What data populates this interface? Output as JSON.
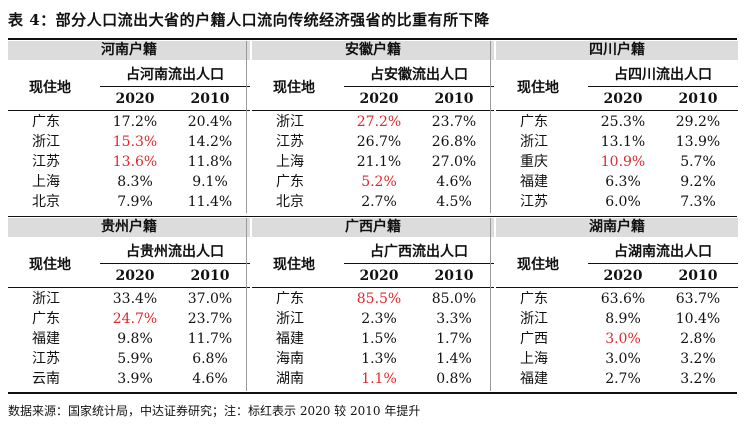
{
  "title": "表 4：部分人口流出大省的户籍人口流向传统经济强省的比重有所下降",
  "note": "数据来源：国家统计局，中达证券研究；注：标红表示 2020 较 2010 年提升",
  "header_labels": {
    "residence": "现住地",
    "years": [
      "2020",
      "2010"
    ]
  },
  "colors": {
    "highlight": "#e0282c",
    "band": "#dcdcdc"
  },
  "panels": [
    {
      "band": "河南户籍",
      "share_label": "占河南流出人口",
      "rows": [
        {
          "city": "广东",
          "v2020": "17.2%",
          "v2010": "20.4%",
          "red": false
        },
        {
          "city": "浙江",
          "v2020": "15.3%",
          "v2010": "14.2%",
          "red": true
        },
        {
          "city": "江苏",
          "v2020": "13.6%",
          "v2010": "11.8%",
          "red": true
        },
        {
          "city": "上海",
          "v2020": "8.3%",
          "v2010": "9.1%",
          "red": false
        },
        {
          "city": "北京",
          "v2020": "7.9%",
          "v2010": "11.4%",
          "red": false
        }
      ]
    },
    {
      "band": "安徽户籍",
      "share_label": "占安徽流出人口",
      "rows": [
        {
          "city": "浙江",
          "v2020": "27.2%",
          "v2010": "23.7%",
          "red": true
        },
        {
          "city": "江苏",
          "v2020": "26.7%",
          "v2010": "26.8%",
          "red": false
        },
        {
          "city": "上海",
          "v2020": "21.1%",
          "v2010": "27.0%",
          "red": false
        },
        {
          "city": "广东",
          "v2020": "5.2%",
          "v2010": "4.6%",
          "red": true
        },
        {
          "city": "北京",
          "v2020": "2.7%",
          "v2010": "4.5%",
          "red": false
        }
      ]
    },
    {
      "band": "四川户籍",
      "share_label": "占四川流出人口",
      "rows": [
        {
          "city": "广东",
          "v2020": "25.3%",
          "v2010": "29.2%",
          "red": false
        },
        {
          "city": "浙江",
          "v2020": "13.1%",
          "v2010": "13.9%",
          "red": false
        },
        {
          "city": "重庆",
          "v2020": "10.9%",
          "v2010": "5.7%",
          "red": true
        },
        {
          "city": "福建",
          "v2020": "6.3%",
          "v2010": "9.2%",
          "red": false
        },
        {
          "city": "江苏",
          "v2020": "6.0%",
          "v2010": "7.3%",
          "red": false
        }
      ]
    },
    {
      "band": "贵州户籍",
      "share_label": "占贵州流出人口",
      "rows": [
        {
          "city": "浙江",
          "v2020": "33.4%",
          "v2010": "37.0%",
          "red": false
        },
        {
          "city": "广东",
          "v2020": "24.7%",
          "v2010": "23.7%",
          "red": true
        },
        {
          "city": "福建",
          "v2020": "9.8%",
          "v2010": "11.7%",
          "red": false
        },
        {
          "city": "江苏",
          "v2020": "5.9%",
          "v2010": "6.8%",
          "red": false
        },
        {
          "city": "云南",
          "v2020": "3.9%",
          "v2010": "4.6%",
          "red": false
        }
      ]
    },
    {
      "band": "广西户籍",
      "share_label": "占广西流出人口",
      "rows": [
        {
          "city": "广东",
          "v2020": "85.5%",
          "v2010": "85.0%",
          "red": true
        },
        {
          "city": "浙江",
          "v2020": "2.3%",
          "v2010": "3.3%",
          "red": false
        },
        {
          "city": "福建",
          "v2020": "1.5%",
          "v2010": "1.7%",
          "red": false
        },
        {
          "city": "海南",
          "v2020": "1.3%",
          "v2010": "1.4%",
          "red": false
        },
        {
          "city": "湖南",
          "v2020": "1.1%",
          "v2010": "0.8%",
          "red": true
        }
      ]
    },
    {
      "band": "湖南户籍",
      "share_label": "占湖南流出人口",
      "rows": [
        {
          "city": "广东",
          "v2020": "63.6%",
          "v2010": "63.7%",
          "red": false
        },
        {
          "city": "浙江",
          "v2020": "8.9%",
          "v2010": "10.4%",
          "red": false
        },
        {
          "city": "广西",
          "v2020": "3.0%",
          "v2010": "2.8%",
          "red": true
        },
        {
          "city": "上海",
          "v2020": "3.0%",
          "v2010": "3.2%",
          "red": false
        },
        {
          "city": "福建",
          "v2020": "2.7%",
          "v2010": "3.2%",
          "red": false
        }
      ]
    }
  ]
}
